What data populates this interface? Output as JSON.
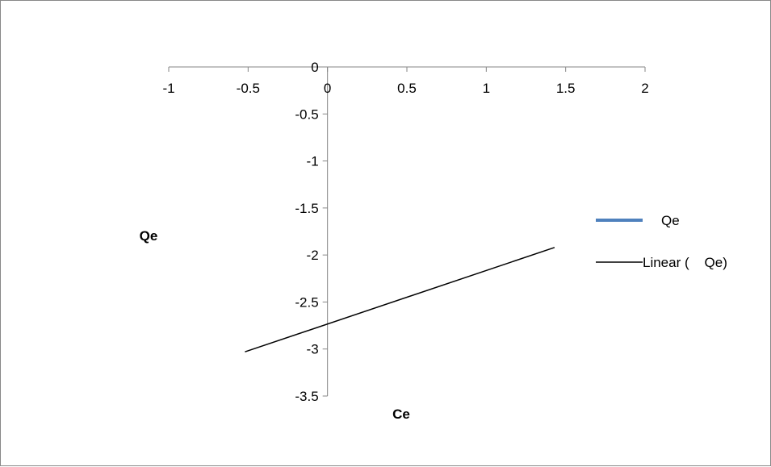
{
  "chart_data": {
    "type": "scatter",
    "xlabel": "Ce",
    "ylabel": "Qe",
    "xlim": [
      -1,
      2
    ],
    "ylim": [
      -3.5,
      0
    ],
    "x_ticks": [
      -1,
      -0.5,
      0,
      0.5,
      1,
      1.5,
      2
    ],
    "y_ticks": [
      0,
      -0.5,
      -1,
      -1.5,
      -2,
      -2.5,
      -3,
      -3.5
    ],
    "x_tick_labels": [
      "-1",
      "-0.5",
      "0",
      "0.5",
      "1",
      "1.5",
      "2"
    ],
    "y_tick_labels": [
      "0",
      "-0.5",
      "-1",
      "-1.5",
      "-2",
      "-2.5",
      "-3",
      "-3.5"
    ],
    "grid": false,
    "legend_position": "right",
    "series": [
      {
        "name": "Qe",
        "color": "#4F81BD",
        "x": [],
        "y": []
      }
    ],
    "trendline": {
      "name": "Linear (    Qe)",
      "type": "linear",
      "color": "#000000",
      "x": [
        -0.52,
        1.43
      ],
      "y": [
        -3.03,
        -1.92
      ]
    }
  }
}
